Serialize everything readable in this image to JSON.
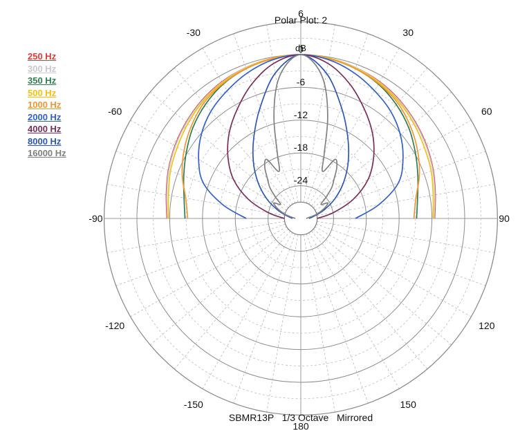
{
  "chart_data": {
    "type": "polar",
    "title": "Polar Plot: 2",
    "radial_unit": "dB",
    "radial_range": [
      -30,
      6
    ],
    "radial_ticks": [
      "6",
      "0",
      "-6",
      "-12",
      "-18",
      "-24"
    ],
    "angle_labels": [
      {
        "angle": -30,
        "label": "-30"
      },
      {
        "angle": 30,
        "label": "30"
      },
      {
        "angle": -60,
        "label": "-60"
      },
      {
        "angle": 60,
        "label": "60"
      },
      {
        "angle": -90,
        "label": "-90"
      },
      {
        "angle": 90,
        "label": "90"
      },
      {
        "angle": -120,
        "label": "-120"
      },
      {
        "angle": 120,
        "label": "120"
      },
      {
        "angle": -150,
        "label": "-150"
      },
      {
        "angle": 150,
        "label": "150"
      },
      {
        "angle": 180,
        "label": "180"
      }
    ],
    "footer": "SBMR13P   1/3 Octave   Mirrored",
    "mirrored": true,
    "grid": true,
    "legend_position": "top-left",
    "series": [
      {
        "name": "250 Hz",
        "color": "#e53935",
        "angles": [
          0,
          10,
          20,
          30,
          40,
          50,
          60,
          70,
          80,
          90
        ],
        "db": [
          0,
          -0.2,
          -0.6,
          -1.1,
          -1.8,
          -2.6,
          -3.4,
          -4.2,
          -5.0,
          -5.5
        ]
      },
      {
        "name": "300 Hz",
        "color": "#c8c8d0",
        "angles": [
          0,
          10,
          20,
          30,
          40,
          50,
          60,
          70,
          80,
          90
        ],
        "db": [
          0,
          -0.2,
          -0.6,
          -1.2,
          -1.9,
          -2.7,
          -3.5,
          -4.3,
          -5.1,
          -5.6
        ]
      },
      {
        "name": "350 Hz",
        "color": "#2e7d4f",
        "angles": [
          0,
          10,
          20,
          30,
          40,
          50,
          60,
          70,
          80,
          90
        ],
        "db": [
          0,
          -0.3,
          -0.8,
          -1.6,
          -2.8,
          -4.2,
          -5.8,
          -7.2,
          -8.3,
          -8.8
        ]
      },
      {
        "name": "500 Hz",
        "color": "#f4c20d",
        "angles": [
          0,
          10,
          20,
          30,
          40,
          50,
          60,
          70,
          80,
          90
        ],
        "db": [
          0,
          -0.2,
          -0.7,
          -1.3,
          -2.1,
          -3.0,
          -3.9,
          -4.6,
          -5.4,
          -5.8
        ]
      },
      {
        "name": "1000 Hz",
        "color": "#f39530",
        "angles": [
          0,
          10,
          20,
          30,
          40,
          50,
          60,
          70,
          80,
          90
        ],
        "db": [
          0,
          -0.3,
          -0.8,
          -1.5,
          -2.4,
          -3.8,
          -5.3,
          -6.9,
          -8.6,
          -9.3
        ]
      },
      {
        "name": "2000 Hz",
        "color": "#2f5fd0",
        "angles": [
          0,
          10,
          20,
          30,
          40,
          50,
          60,
          70,
          80,
          90
        ],
        "db": [
          0,
          -0.5,
          -1.6,
          -3.0,
          -4.4,
          -6.2,
          -8.4,
          -11.0,
          -15.5,
          -20.0
        ]
      },
      {
        "name": "4000 Hz",
        "color": "#7b2c5a",
        "angles": [
          0,
          10,
          20,
          30,
          40,
          50,
          60,
          70,
          80,
          90
        ],
        "db": [
          0,
          -1.2,
          -3.8,
          -6.8,
          -9.6,
          -12.6,
          -15.8,
          -19.8,
          -24.0,
          -27.0
        ]
      },
      {
        "name": "8000 Hz",
        "color": "#2a56b8",
        "angles": [
          0,
          10,
          20,
          30,
          40,
          50,
          60,
          70,
          80,
          90
        ],
        "db": [
          0,
          -3.0,
          -8.3,
          -12.8,
          -16.5,
          -19.8,
          -22.8,
          -25.5,
          -27.5,
          -28.5
        ]
      },
      {
        "name": "16000 Hz",
        "color": "#808080",
        "angles": [
          0,
          5,
          10,
          15,
          20,
          25,
          30,
          35,
          40,
          45,
          50,
          55,
          60,
          65,
          70,
          75,
          80,
          90
        ],
        "db": [
          0,
          -1.5,
          -5.0,
          -11.0,
          -17.5,
          -20.5,
          -17.5,
          -18.5,
          -20.5,
          -22.0,
          -24.0,
          -25.5,
          -24.3,
          -25.0,
          -26.0,
          -27.0,
          -28.0,
          -29.0
        ]
      }
    ]
  }
}
